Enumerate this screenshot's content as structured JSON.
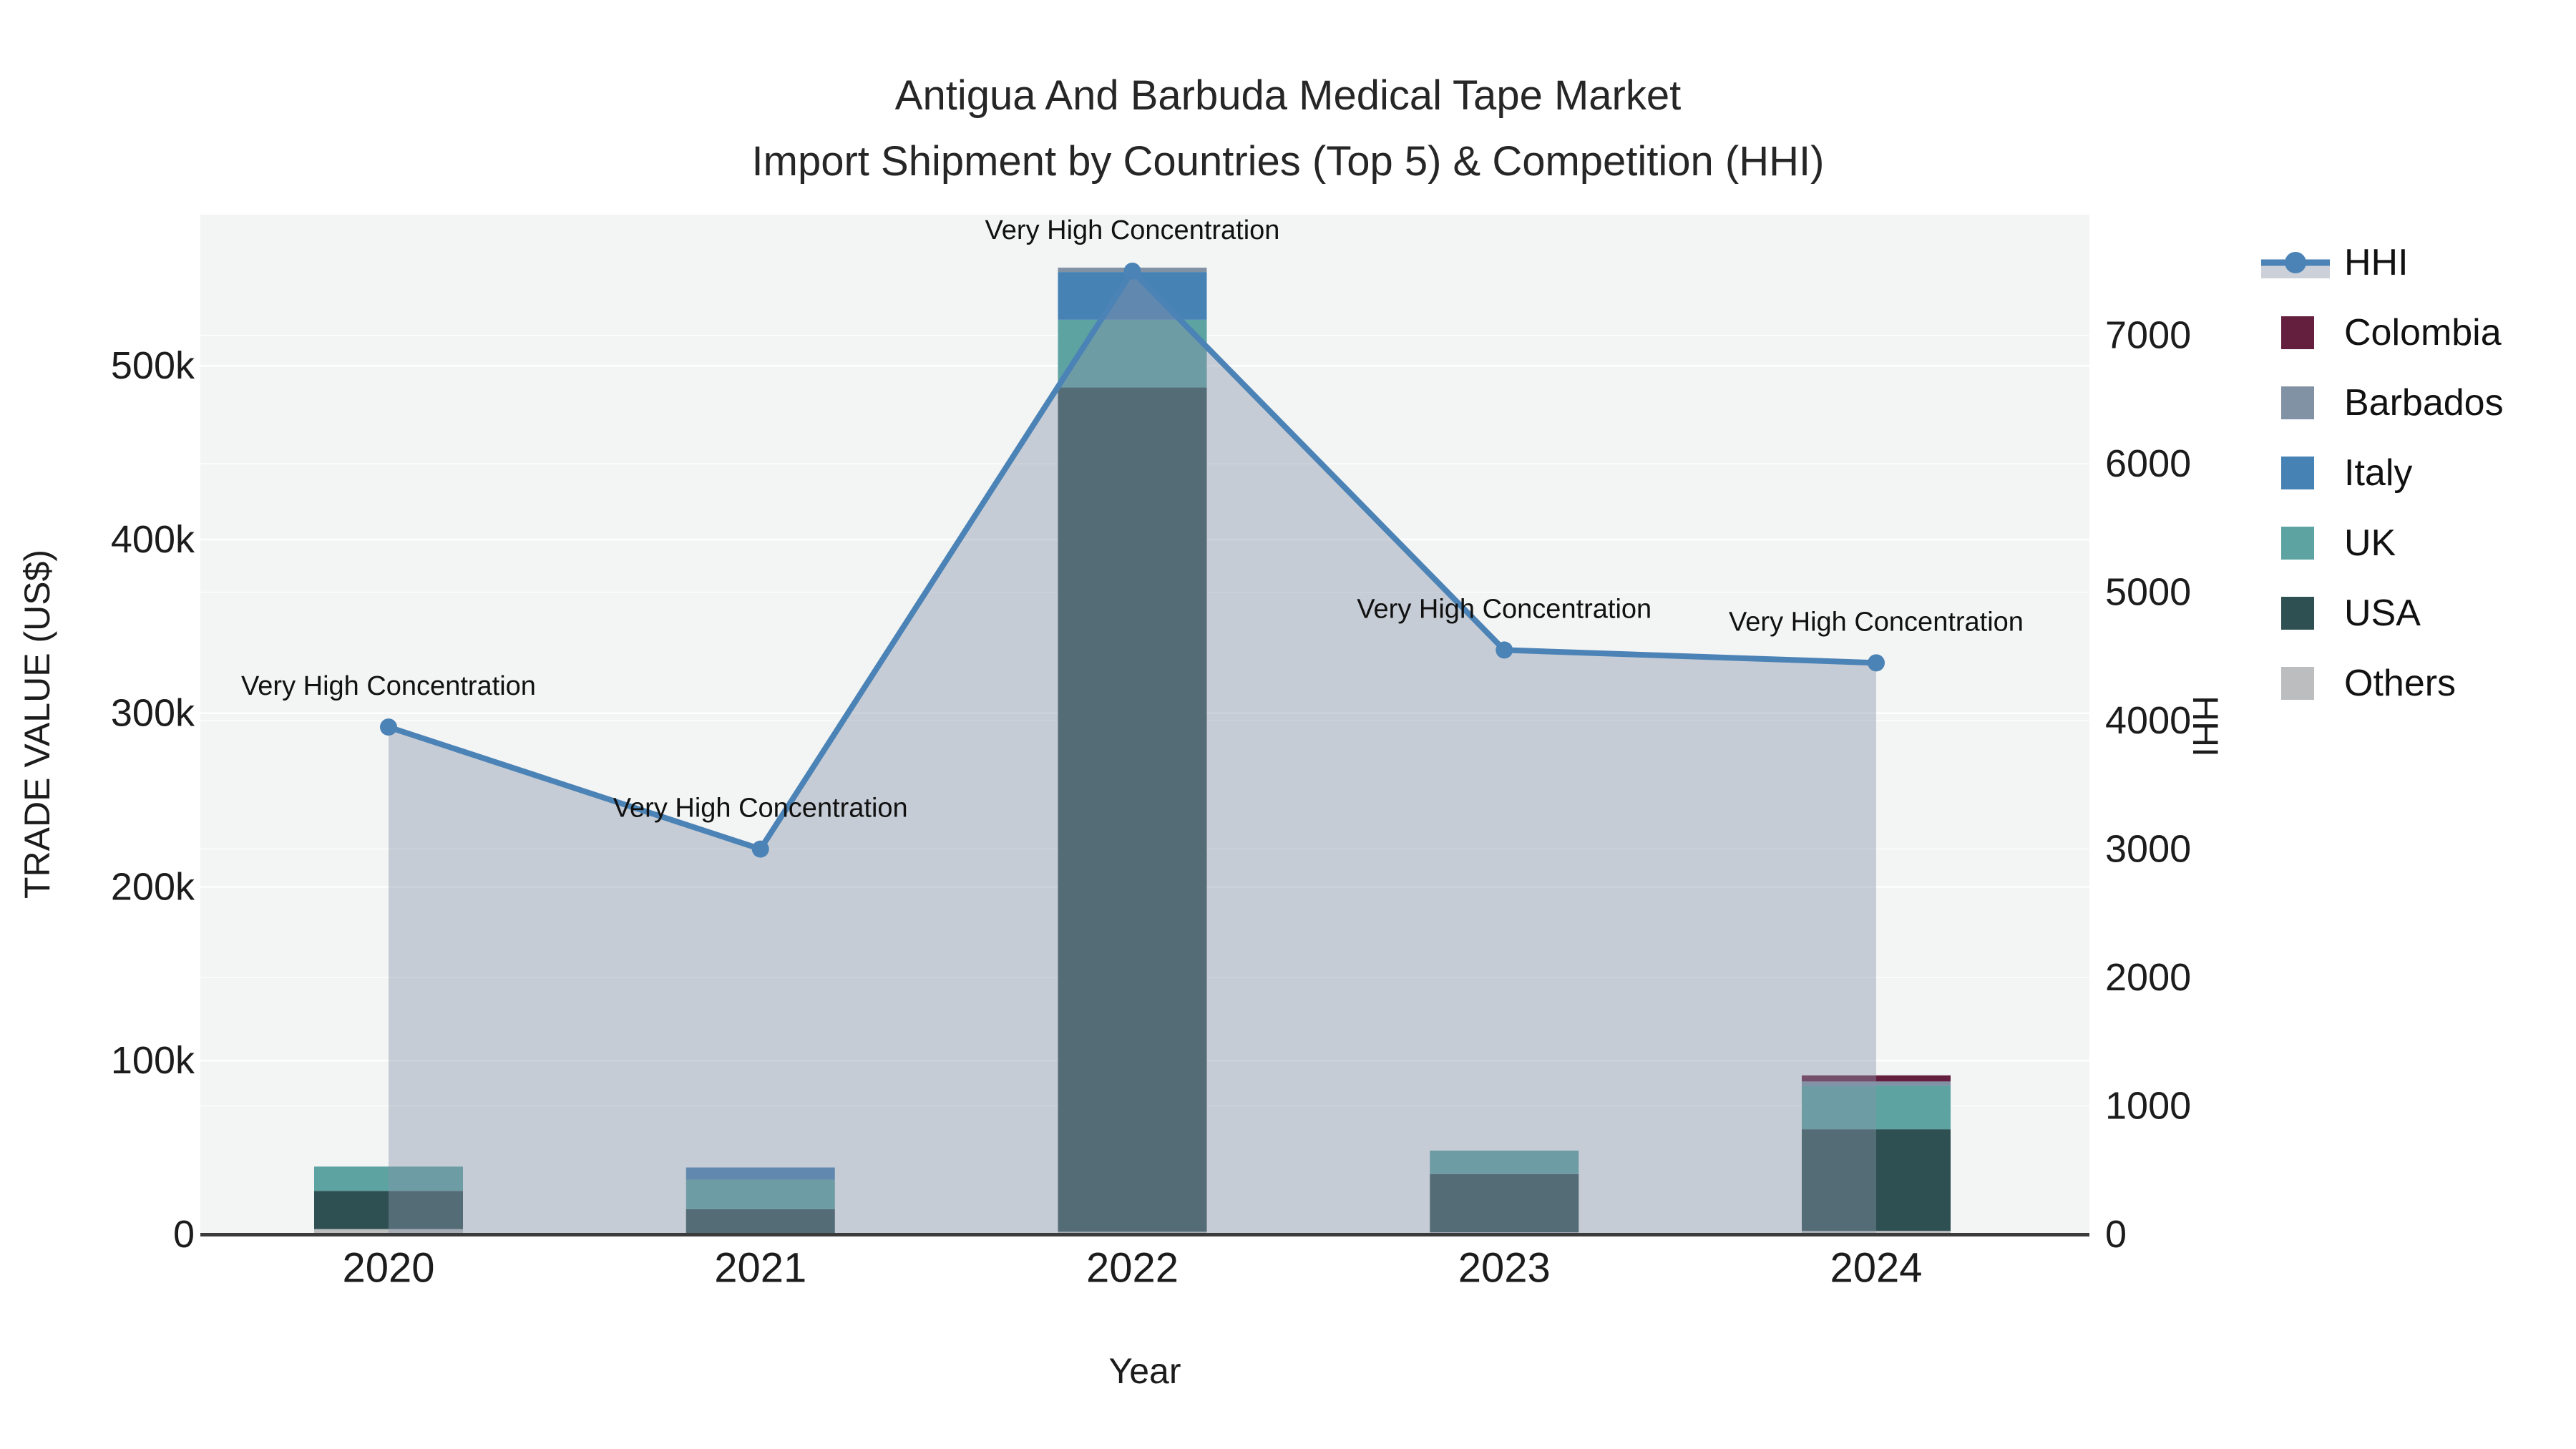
{
  "chart_data": {
    "type": "combo_stacked_bar_line",
    "title_line1": "Antigua And Barbuda Medical Tape Market",
    "title_line2": "Import Shipment by Countries (Top 5) & Competition (HHI)",
    "xlabel": "Year",
    "ylabel_left": "TRADE VALUE (US$)",
    "ylabel_right": "HHI",
    "categories": [
      "2020",
      "2021",
      "2022",
      "2023",
      "2024"
    ],
    "y_left_axis": {
      "min": 0,
      "max": 587000,
      "ticks": [
        {
          "value": 0,
          "label": "0"
        },
        {
          "value": 100000,
          "label": "100k"
        },
        {
          "value": 200000,
          "label": "200k"
        },
        {
          "value": 300000,
          "label": "300k"
        },
        {
          "value": 400000,
          "label": "400k"
        },
        {
          "value": 500000,
          "label": "500k"
        }
      ]
    },
    "y_right_axis": {
      "min": 0,
      "max": 7940,
      "ticks": [
        {
          "value": 0,
          "label": "0"
        },
        {
          "value": 1000,
          "label": "1000"
        },
        {
          "value": 2000,
          "label": "2000"
        },
        {
          "value": 3000,
          "label": "3000"
        },
        {
          "value": 4000,
          "label": "4000"
        },
        {
          "value": 5000,
          "label": "5000"
        },
        {
          "value": 6000,
          "label": "6000"
        },
        {
          "value": 7000,
          "label": "7000"
        }
      ]
    },
    "bar_stack_order_bottom_to_top": [
      "Others",
      "USA",
      "UK",
      "Italy",
      "Barbados",
      "Colombia"
    ],
    "series": [
      {
        "name": "HHI",
        "type": "line",
        "color": "#4c83b6",
        "fill_color": "rgba(136,148,170,0.42)",
        "values": [
          3950,
          3000,
          7500,
          4550,
          4450
        ]
      },
      {
        "name": "Colombia",
        "type": "bar",
        "color": "#641e3e",
        "values": [
          0,
          0,
          0,
          0,
          3500
        ]
      },
      {
        "name": "Barbados",
        "type": "bar",
        "color": "#8292a5",
        "values": [
          0,
          0,
          2500,
          0,
          2500
        ]
      },
      {
        "name": "Italy",
        "type": "bar",
        "color": "#4682b4",
        "values": [
          0,
          7000,
          27500,
          0,
          0
        ]
      },
      {
        "name": "UK",
        "type": "bar",
        "color": "#5ca3a2",
        "values": [
          14000,
          17000,
          39000,
          13500,
          25000
        ]
      },
      {
        "name": "USA",
        "type": "bar",
        "color": "#2f5052",
        "values": [
          22000,
          14500,
          486000,
          33500,
          58500
        ]
      },
      {
        "name": "Others",
        "type": "bar",
        "color": "#bbbdbf",
        "values": [
          3000,
          0,
          1500,
          1200,
          2000
        ]
      }
    ],
    "annotations": [
      {
        "year_index": 0,
        "text": "Very High Concentration"
      },
      {
        "year_index": 1,
        "text": "Very High Concentration"
      },
      {
        "year_index": 2,
        "text": "Very High Concentration"
      },
      {
        "year_index": 3,
        "text": "Very High Concentration"
      },
      {
        "year_index": 4,
        "text": "Very High Concentration"
      }
    ],
    "legend_position": "right"
  },
  "style": {
    "plot_bg": "#f3f4f4",
    "grid_color": "#ffffff",
    "axis_line_color": "#3b3b3b",
    "text_color": "#1c1c1c",
    "title_color": "#262626"
  }
}
